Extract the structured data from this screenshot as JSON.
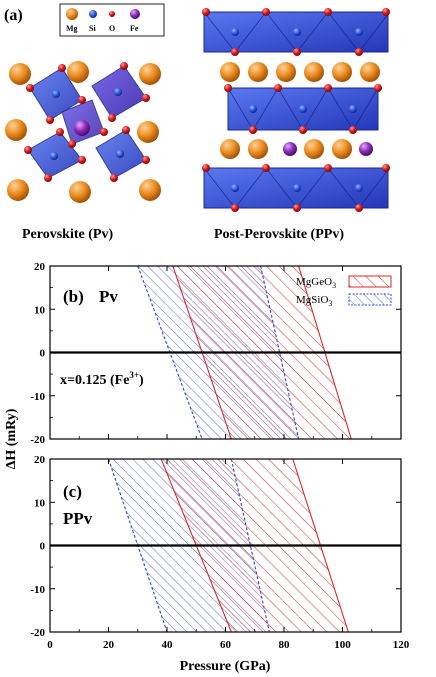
{
  "figure": {
    "panel_a": {
      "label": "(a)",
      "legend": [
        {
          "name": "Mg",
          "color": "#e8841a"
        },
        {
          "name": "Si",
          "color": "#2a55e0"
        },
        {
          "name": "O",
          "color": "#d51818"
        },
        {
          "name": "Fe",
          "color": "#8e2ab8"
        }
      ],
      "pv_caption": "Perovskite (Pv)",
      "ppv_caption": "Post-Perovskite (PPv)"
    }
  },
  "chart_data": [
    {
      "type": "area",
      "panel_label": "(b)",
      "phase_label": "Pv",
      "annotation": {
        "prefix": "x=0.125 (Fe",
        "sup": "3+",
        "suffix": ")"
      },
      "ylabel": "ΔH (mRy)",
      "xlim": [
        0,
        120
      ],
      "ylim": [
        -20,
        20
      ],
      "yticks": [
        20,
        10,
        0,
        -10,
        -20
      ],
      "legend_placement": "top-right",
      "series": [
        {
          "name": "MgGeO",
          "sub": "3",
          "color": "#d62a2a",
          "hatch": "/",
          "lower": [
            [
              42,
              20
            ],
            [
              62,
              -20
            ]
          ],
          "upper": [
            [
              85,
              20
            ],
            [
              103,
              -20
            ]
          ]
        },
        {
          "name": "MgSiO",
          "sub": "3",
          "color": "#2a48d6",
          "hatch": "/",
          "lower": [
            [
              30,
              20
            ],
            [
              52,
              -20
            ]
          ],
          "upper": [
            [
              72,
              20
            ],
            [
              85,
              -20
            ]
          ]
        }
      ]
    },
    {
      "type": "area",
      "panel_label": "(c)",
      "phase_label": "PPv",
      "xlabel": "Pressure (GPa)",
      "xlim": [
        0,
        120
      ],
      "ylim": [
        -20,
        20
      ],
      "xticks": [
        0,
        20,
        40,
        60,
        80,
        100,
        120
      ],
      "yticks": [
        20,
        10,
        0,
        -10,
        -20
      ],
      "series": [
        {
          "name": "MgGeO",
          "sub": "3",
          "color": "#d62a2a",
          "hatch": "/",
          "lower": [
            [
              38,
              20
            ],
            [
              62,
              -20
            ]
          ],
          "upper": [
            [
              83,
              20
            ],
            [
              102,
              -20
            ]
          ]
        },
        {
          "name": "MgSiO",
          "sub": "3",
          "color": "#2a48d6",
          "hatch": "/",
          "lower": [
            [
              20,
              20
            ],
            [
              40,
              -20
            ]
          ],
          "upper": [
            [
              62,
              20
            ],
            [
              75,
              -20
            ]
          ]
        }
      ]
    }
  ]
}
